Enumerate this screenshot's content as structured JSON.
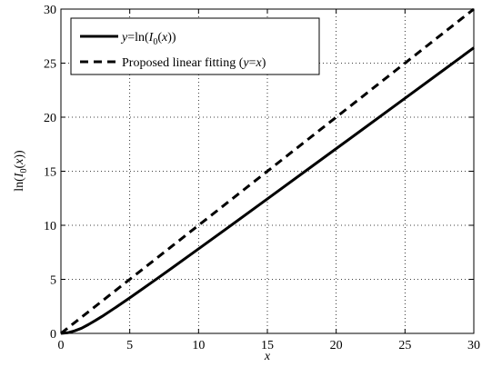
{
  "chart_data": {
    "type": "line",
    "title": "",
    "xlabel": "x",
    "ylabel": "ln(I0(x))",
    "xlim": [
      0,
      30
    ],
    "ylim": [
      0,
      30
    ],
    "xticks": [
      0,
      5,
      10,
      15,
      20,
      25,
      30
    ],
    "yticks": [
      0,
      5,
      10,
      15,
      20,
      25,
      30
    ],
    "x_tick_labels": [
      "0",
      "5",
      "10",
      "15",
      "20",
      "25",
      "30"
    ],
    "y_tick_labels": [
      "0",
      "5",
      "10",
      "15",
      "20",
      "25",
      "30"
    ],
    "grid": "dotted",
    "legend_position": "top-left",
    "series": [
      {
        "name": "y=ln(I0(x))",
        "style": "solid",
        "x": [
          0,
          0.5,
          1,
          1.5,
          2,
          2.5,
          3,
          4,
          5,
          6,
          7,
          8,
          10,
          12,
          15,
          18,
          20,
          22,
          25,
          28,
          30
        ],
        "y": [
          0,
          0.062,
          0.235,
          0.48,
          0.82,
          1.19,
          1.58,
          2.42,
          3.29,
          4.18,
          5.08,
          5.99,
          7.82,
          9.66,
          12.44,
          15.23,
          17.09,
          18.95,
          21.75,
          24.55,
          26.42
        ]
      },
      {
        "name": "Proposed linear fitting (y=x)",
        "style": "dashed",
        "x": [
          0,
          30
        ],
        "y": [
          0,
          30
        ]
      }
    ]
  }
}
